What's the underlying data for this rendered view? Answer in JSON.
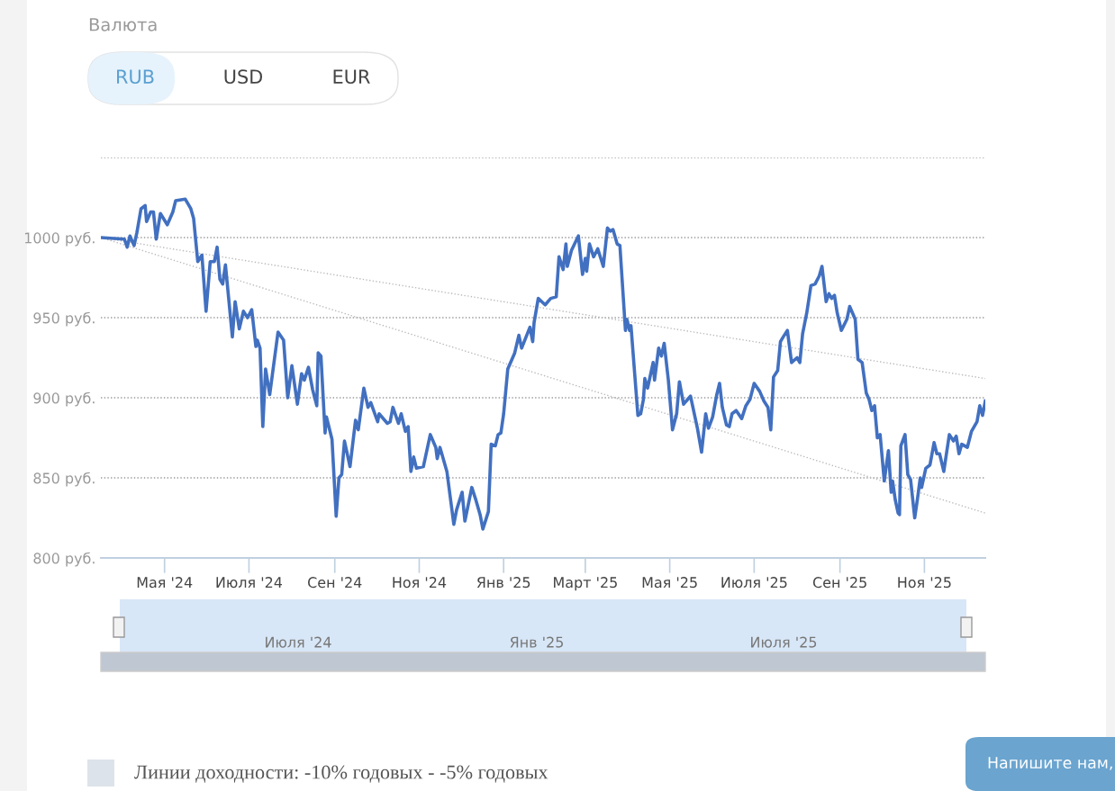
{
  "chart_data": {
    "type": "line",
    "ylim": [
      800,
      1050
    ],
    "yticks": [
      {
        "value": 800,
        "label": "800 руб."
      },
      {
        "value": 850,
        "label": "850 руб."
      },
      {
        "value": 900,
        "label": "900 руб."
      },
      {
        "value": 950,
        "label": "950 руб."
      },
      {
        "value": 1000,
        "label": "1000 руб."
      },
      {
        "value": 1050,
        "label": null
      }
    ],
    "xlim": [
      "2024-03-16",
      "2025-12-15"
    ],
    "xticks": [
      {
        "value": "2024-05-01",
        "label": "Мая '24"
      },
      {
        "value": "2024-07-01",
        "label": "Июля '24"
      },
      {
        "value": "2024-09-01",
        "label": "Сен '24"
      },
      {
        "value": "2024-11-01",
        "label": "Ноя '24"
      },
      {
        "value": "2025-01-01",
        "label": "Янв '25"
      },
      {
        "value": "2025-03-01",
        "label": "Март '25"
      },
      {
        "value": "2025-05-01",
        "label": "Мая '25"
      },
      {
        "value": "2025-07-01",
        "label": "Июля '25"
      },
      {
        "value": "2025-09-01",
        "label": "Сен '25"
      },
      {
        "value": "2025-11-01",
        "label": "Ноя '25"
      }
    ],
    "grid": "y",
    "line_style": "solid",
    "series": [
      {
        "color": "#bbbbbb",
        "line_style": "dotted",
        "x": [
          "2024-03-16",
          "2025-12-15"
        ],
        "values": [
          1000,
          912
        ]
      },
      {
        "color": "#bbbbbb",
        "line_style": "dotted",
        "x": [
          "2024-03-16",
          "2025-12-15"
        ],
        "values": [
          1000,
          828
        ]
      },
      {
        "color": "#4270c0",
        "x": [
          "2024-03-16",
          "2024-04-02",
          "2024-04-04",
          "2024-04-06",
          "2024-04-09",
          "2024-04-11",
          "2024-04-14",
          "2024-04-17",
          "2024-04-18",
          "2024-04-21",
          "2024-04-23",
          "2024-04-25",
          "2024-04-28",
          "2024-05-03",
          "2024-05-07",
          "2024-05-09",
          "2024-05-16",
          "2024-05-20",
          "2024-05-22",
          "2024-05-25",
          "2024-05-28",
          "2024-05-31",
          "2024-06-03",
          "2024-06-06",
          "2024-06-08",
          "2024-06-10",
          "2024-06-12",
          "2024-06-14",
          "2024-06-19",
          "2024-06-21",
          "2024-06-24",
          "2024-06-27",
          "2024-06-30",
          "2024-07-03",
          "2024-07-06",
          "2024-07-07",
          "2024-07-09",
          "2024-07-11",
          "2024-07-13",
          "2024-07-16",
          "2024-07-18",
          "2024-07-22",
          "2024-07-26",
          "2024-07-29",
          "2024-08-01",
          "2024-08-05",
          "2024-08-08",
          "2024-08-10",
          "2024-08-13",
          "2024-08-16",
          "2024-08-19",
          "2024-08-20",
          "2024-08-22",
          "2024-08-25",
          "2024-08-26",
          "2024-08-30",
          "2024-09-02",
          "2024-09-04",
          "2024-09-06",
          "2024-09-08",
          "2024-09-12",
          "2024-09-16",
          "2024-09-18",
          "2024-09-22",
          "2024-09-25",
          "2024-09-27",
          "2024-10-02",
          "2024-10-03",
          "2024-10-09",
          "2024-10-11",
          "2024-10-13",
          "2024-10-17",
          "2024-10-19",
          "2024-10-22",
          "2024-10-24",
          "2024-10-26",
          "2024-10-28",
          "2024-10-30",
          "2024-11-04",
          "2024-11-09",
          "2024-11-13",
          "2024-11-14",
          "2024-11-16",
          "2024-11-21",
          "2024-11-26",
          "2024-11-28",
          "2024-12-02",
          "2024-12-04",
          "2024-12-09",
          "2024-12-12",
          "2024-12-15",
          "2024-12-17",
          "2024-12-21",
          "2024-12-23",
          "2024-12-26",
          "2024-12-28",
          "2024-12-30",
          "2025-01-01",
          "2025-01-04",
          "2025-01-09",
          "2025-01-12",
          "2025-01-14",
          "2025-01-20",
          "2025-01-22",
          "2025-01-23",
          "2025-01-26",
          "2025-01-31",
          "2025-02-04",
          "2025-02-08",
          "2025-02-10",
          "2025-02-13",
          "2025-02-15",
          "2025-02-16",
          "2025-02-19",
          "2025-02-24",
          "2025-02-27",
          "2025-03-01",
          "2025-03-02",
          "2025-03-04",
          "2025-03-07",
          "2025-03-10",
          "2025-03-14",
          "2025-03-17",
          "2025-03-19",
          "2025-03-21",
          "2025-03-24",
          "2025-03-26",
          "2025-03-30",
          "2025-03-31",
          "2025-04-02",
          "2025-04-03",
          "2025-04-08",
          "2025-04-10",
          "2025-04-12",
          "2025-04-13",
          "2025-04-15",
          "2025-04-19",
          "2025-04-20",
          "2025-04-23",
          "2025-04-25",
          "2025-04-27",
          "2025-04-30",
          "2025-05-03",
          "2025-05-06",
          "2025-05-08",
          "2025-05-11",
          "2025-05-14",
          "2025-05-16",
          "2025-05-21",
          "2025-05-24",
          "2025-05-27",
          "2025-05-29",
          "2025-06-01",
          "2025-06-04",
          "2025-06-06",
          "2025-06-08",
          "2025-06-11",
          "2025-06-13",
          "2025-06-15",
          "2025-06-18",
          "2025-06-22",
          "2025-06-25",
          "2025-06-28",
          "2025-07-01",
          "2025-07-05",
          "2025-07-08",
          "2025-07-11",
          "2025-07-13",
          "2025-07-15",
          "2025-07-18",
          "2025-07-20",
          "2025-07-22",
          "2025-07-25",
          "2025-07-28",
          "2025-08-01",
          "2025-08-03",
          "2025-08-05",
          "2025-08-08",
          "2025-08-11",
          "2025-08-14",
          "2025-08-17",
          "2025-08-19",
          "2025-08-22",
          "2025-08-24",
          "2025-08-26",
          "2025-08-28",
          "2025-08-30",
          "2025-09-02",
          "2025-09-06",
          "2025-09-08",
          "2025-09-12",
          "2025-09-14",
          "2025-09-17",
          "2025-09-20",
          "2025-09-22",
          "2025-09-24",
          "2025-09-26",
          "2025-09-28",
          "2025-09-30",
          "2025-10-03",
          "2025-10-06",
          "2025-10-08",
          "2025-10-09",
          "2025-10-11",
          "2025-10-13",
          "2025-10-14",
          "2025-10-15",
          "2025-10-18",
          "2025-10-20",
          "2025-10-22",
          "2025-10-25",
          "2025-10-27",
          "2025-10-29",
          "2025-10-30",
          "2025-11-02",
          "2025-11-05",
          "2025-11-08",
          "2025-11-10",
          "2025-11-12",
          "2025-11-15",
          "2025-11-19",
          "2025-11-22",
          "2025-11-24",
          "2025-11-26",
          "2025-11-28",
          "2025-12-02",
          "2025-12-05",
          "2025-12-09",
          "2025-12-11",
          "2025-12-13",
          "2025-12-15"
        ],
        "values": [
          1000,
          999,
          994,
          1001,
          995,
          1003,
          1018,
          1020,
          1010,
          1016,
          1016,
          999,
          1015,
          1008,
          1016,
          1023,
          1024,
          1018,
          1012,
          985,
          989,
          954,
          985,
          985,
          994,
          974,
          971,
          983,
          938,
          960,
          943,
          954,
          950,
          955,
          932,
          936,
          931,
          882,
          918,
          902,
          915,
          941,
          936,
          900,
          920,
          896,
          915,
          911,
          919,
          905,
          895,
          928,
          926,
          878,
          888,
          874,
          826,
          850,
          852,
          873,
          857,
          886,
          880,
          906,
          894,
          897,
          885,
          890,
          884,
          885,
          894,
          884,
          890,
          879,
          882,
          854,
          863,
          856,
          857,
          877,
          869,
          862,
          869,
          854,
          821,
          830,
          841,
          823,
          844,
          836,
          827,
          818,
          829,
          871,
          870,
          877,
          878,
          890,
          918,
          928,
          939,
          931,
          944,
          935,
          947,
          962,
          958,
          962,
          963,
          988,
          980,
          996,
          982,
          992,
          1001,
          977,
          987,
          979,
          996,
          988,
          993,
          982,
          1006,
          1004,
          1005,
          996,
          995,
          942,
          949,
          942,
          945,
          889,
          890,
          899,
          912,
          906,
          922,
          911,
          931,
          926,
          934,
          911,
          880,
          890,
          910,
          896,
          899,
          901,
          881,
          866,
          890,
          881,
          888,
          902,
          909,
          894,
          883,
          882,
          890,
          892,
          887,
          895,
          899,
          909,
          904,
          898,
          894,
          880,
          913,
          917,
          935,
          938,
          942,
          922,
          925,
          922,
          940,
          953,
          970,
          971,
          976,
          982,
          960,
          965,
          962,
          964,
          953,
          942,
          949,
          957,
          949,
          924,
          922,
          903,
          899,
          892,
          895,
          875,
          877,
          848,
          867,
          841,
          848,
          836,
          828,
          827,
          870,
          877,
          852,
          849,
          825,
          837,
          850,
          844,
          856,
          858,
          872,
          865,
          865,
          854,
          877,
          873,
          876,
          865,
          871,
          869,
          879,
          885,
          895,
          889,
          898
        ]
      }
    ],
    "annotations": [
      "Валюта",
      "RUB",
      "USD",
      "EUR",
      "Июля '24",
      "Янв '25",
      "Июля '25",
      "Линии доходности: -10% годовых - -5% годовых",
      "Напишите нам,"
    ]
  }
}
